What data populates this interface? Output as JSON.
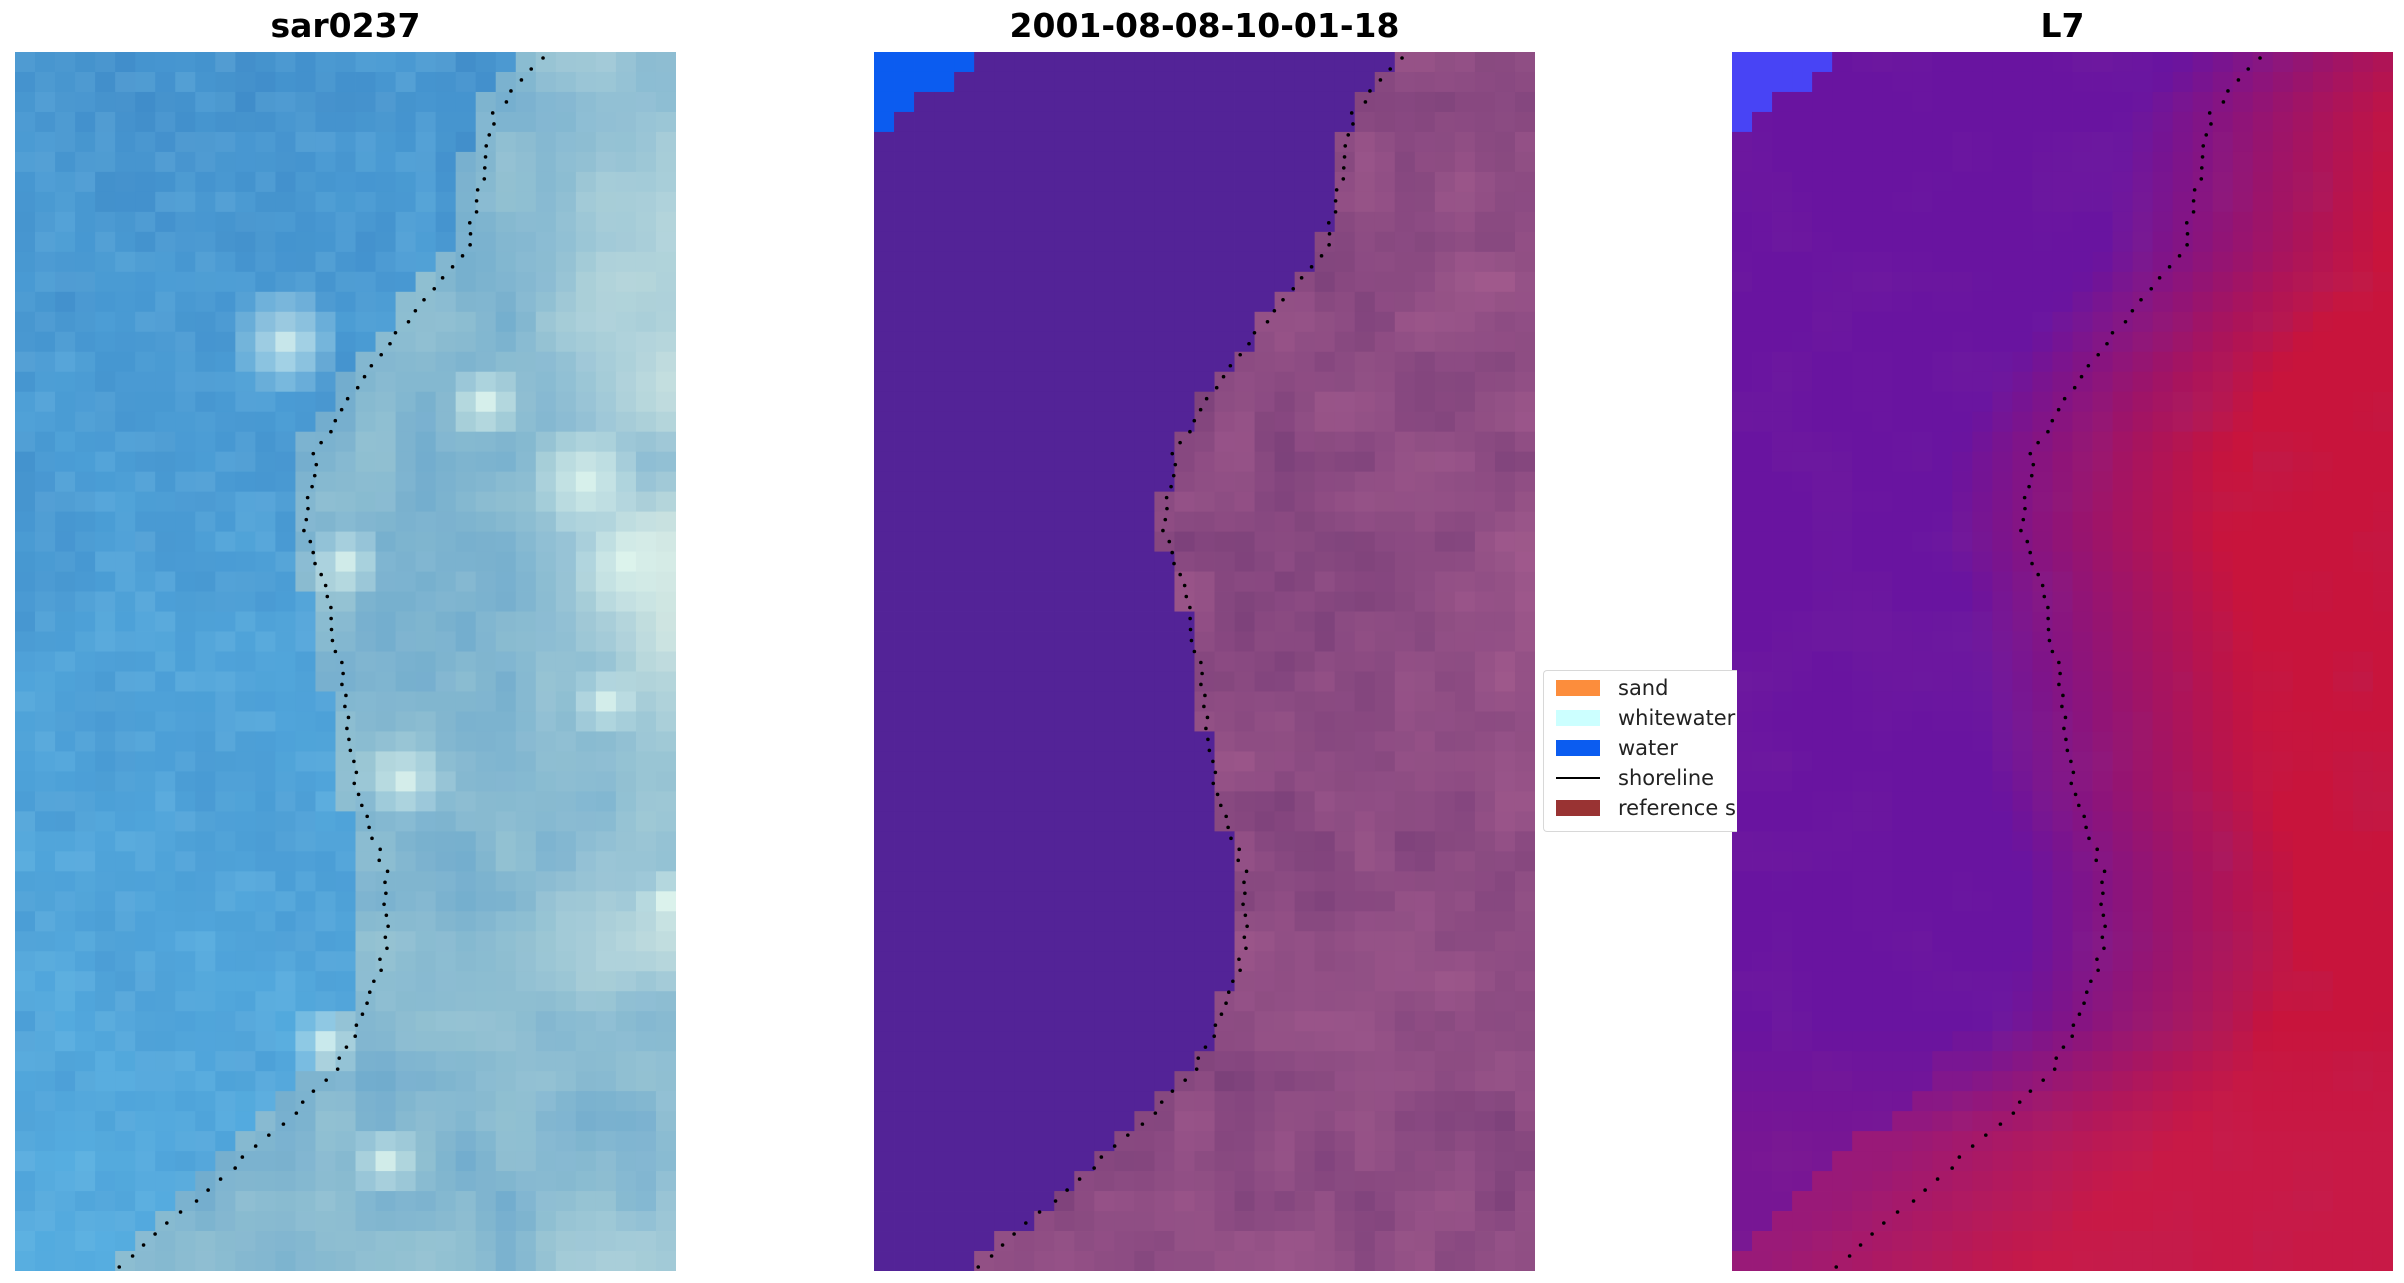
{
  "panels": [
    {
      "title": "sar0237",
      "style": "rgb"
    },
    {
      "title": "2001-08-08-10-01-18",
      "style": "classified"
    },
    {
      "title": "L7",
      "style": "mndwi"
    }
  ],
  "legend": [
    {
      "label": "sand",
      "kind": "patch",
      "color": "#fc8d3c"
    },
    {
      "label": "whitewater",
      "kind": "patch",
      "color": "#ccffff"
    },
    {
      "label": "water",
      "kind": "patch",
      "color": "#0b5cf0"
    },
    {
      "label": "shoreline",
      "kind": "line",
      "color": "#000000"
    },
    {
      "label": "reference shoreline",
      "kind": "patch",
      "color": "#993333"
    }
  ]
}
